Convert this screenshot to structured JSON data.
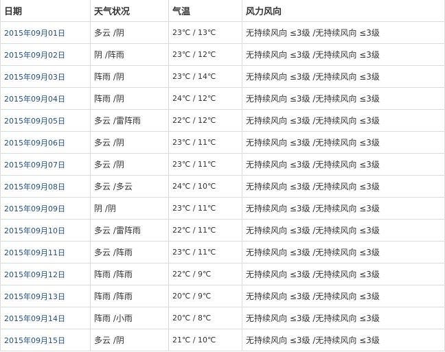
{
  "colors": {
    "date_link": "#1d4f86",
    "text": "#333333",
    "border": "#dcdcdc"
  },
  "headers": [
    "日期",
    "天气状况",
    "气温",
    "风力风向"
  ],
  "rows": [
    {
      "date": "2015年09月01日",
      "weather": "多云 /阴",
      "temp": "23℃ / 13℃",
      "wind": "无持续风向 ≤3级 /无持续风向 ≤3级"
    },
    {
      "date": "2015年09月02日",
      "weather": "阴 /阵雨",
      "temp": "23℃ / 12℃",
      "wind": "无持续风向 ≤3级 /无持续风向 ≤3级"
    },
    {
      "date": "2015年09月03日",
      "weather": "阵雨 /阴",
      "temp": "23℃ / 14℃",
      "wind": "无持续风向 ≤3级 /无持续风向 ≤3级"
    },
    {
      "date": "2015年09月04日",
      "weather": "阵雨 /阴",
      "temp": "24℃ / 12℃",
      "wind": "无持续风向 ≤3级 /无持续风向 ≤3级"
    },
    {
      "date": "2015年09月05日",
      "weather": "多云 /雷阵雨",
      "temp": "22℃ / 12℃",
      "wind": "无持续风向 ≤3级 /无持续风向 ≤3级"
    },
    {
      "date": "2015年09月06日",
      "weather": "多云 /阴",
      "temp": "23℃ / 11℃",
      "wind": "无持续风向 ≤3级 /无持续风向 ≤3级"
    },
    {
      "date": "2015年09月07日",
      "weather": "多云 /阴",
      "temp": "23℃ / 11℃",
      "wind": "无持续风向 ≤3级 /无持续风向 ≤3级"
    },
    {
      "date": "2015年09月08日",
      "weather": "多云 /多云",
      "temp": "24℃ / 10℃",
      "wind": "无持续风向 ≤3级 /无持续风向 ≤3级"
    },
    {
      "date": "2015年09月09日",
      "weather": "阴 /阴",
      "temp": "23℃ / 11℃",
      "wind": "无持续风向 ≤3级 /无持续风向 ≤3级"
    },
    {
      "date": "2015年09月10日",
      "weather": "多云 /雷阵雨",
      "temp": "22℃ / 11℃",
      "wind": "无持续风向 ≤3级 /无持续风向 ≤3级"
    },
    {
      "date": "2015年09月11日",
      "weather": "多云 /阵雨",
      "temp": "23℃ / 11℃",
      "wind": "无持续风向 ≤3级 /无持续风向 ≤3级"
    },
    {
      "date": "2015年09月12日",
      "weather": "阵雨 /阵雨",
      "temp": "22℃ / 9℃",
      "wind": "无持续风向 ≤3级 /无持续风向 ≤3级"
    },
    {
      "date": "2015年09月13日",
      "weather": "阵雨 /阵雨",
      "temp": "20℃ / 9℃",
      "wind": "无持续风向 ≤3级 /无持续风向 ≤3级"
    },
    {
      "date": "2015年09月14日",
      "weather": "阵雨 /小雨",
      "temp": "20℃ / 8℃",
      "wind": "无持续风向 ≤3级 /无持续风向 ≤3级"
    },
    {
      "date": "2015年09月15日",
      "weather": "多云 /阴",
      "temp": "21℃ / 10℃",
      "wind": "无持续风向 ≤3级 /无持续风向 ≤3级"
    }
  ]
}
